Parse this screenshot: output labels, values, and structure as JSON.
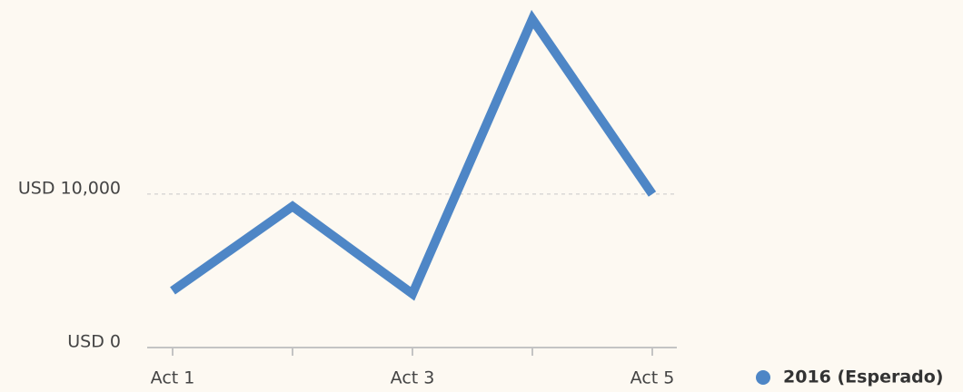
{
  "chart_data": {
    "type": "line",
    "categories": [
      "Act 1",
      null,
      "Act 3",
      null,
      "Act 5"
    ],
    "series": [
      {
        "name": "2016 (Esperado)",
        "color": "#4e86c6",
        "values": [
          3700,
          9200,
          3500,
          21400,
          10000
        ]
      }
    ],
    "ylim": [
      0,
      22000
    ],
    "yticks": [
      {
        "value": 0,
        "label": "USD 0"
      },
      {
        "value": 10000,
        "label": "USD 10,000"
      }
    ],
    "grid": true,
    "legend": "bottom-right"
  }
}
